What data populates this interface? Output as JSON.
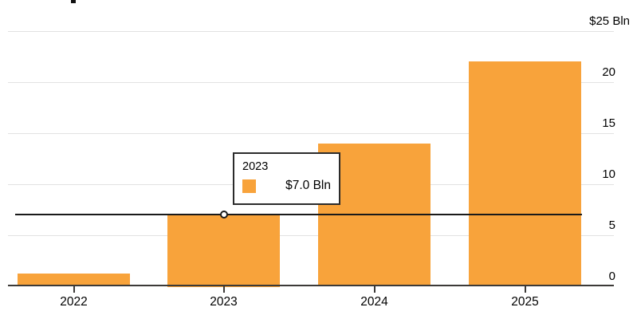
{
  "chart_data": {
    "type": "bar",
    "title": "",
    "xlabel": "",
    "ylabel": "",
    "categories": [
      "2022",
      "2023",
      "2024",
      "2025"
    ],
    "values": [
      1.2,
      7.0,
      14.0,
      22.0
    ],
    "ylim": [
      0,
      25
    ],
    "yticks": [
      0,
      5,
      10,
      15,
      20,
      25
    ],
    "ytick_labels": [
      "0",
      "5",
      "10",
      "15",
      "20",
      "$25 Bln"
    ],
    "grid": true,
    "y_axis_side": "right",
    "legend_position": "none",
    "bar_color": "#F8A33B",
    "highlight": {
      "category": "2023",
      "value": 7.0
    }
  },
  "tooltip": {
    "title": "2023",
    "value": "$7.0 Bln",
    "swatch_color": "#F8A33B"
  },
  "colors": {
    "bar": "#F8A33B",
    "gridline": "#E2E2E2",
    "axis": "#3C3A38",
    "hover_line": "#1A1A1A",
    "text": "#000000",
    "tooltip_border": "#2B2B2B",
    "tooltip_bg": "#FFFFFF",
    "background": "#FFFFFF"
  }
}
